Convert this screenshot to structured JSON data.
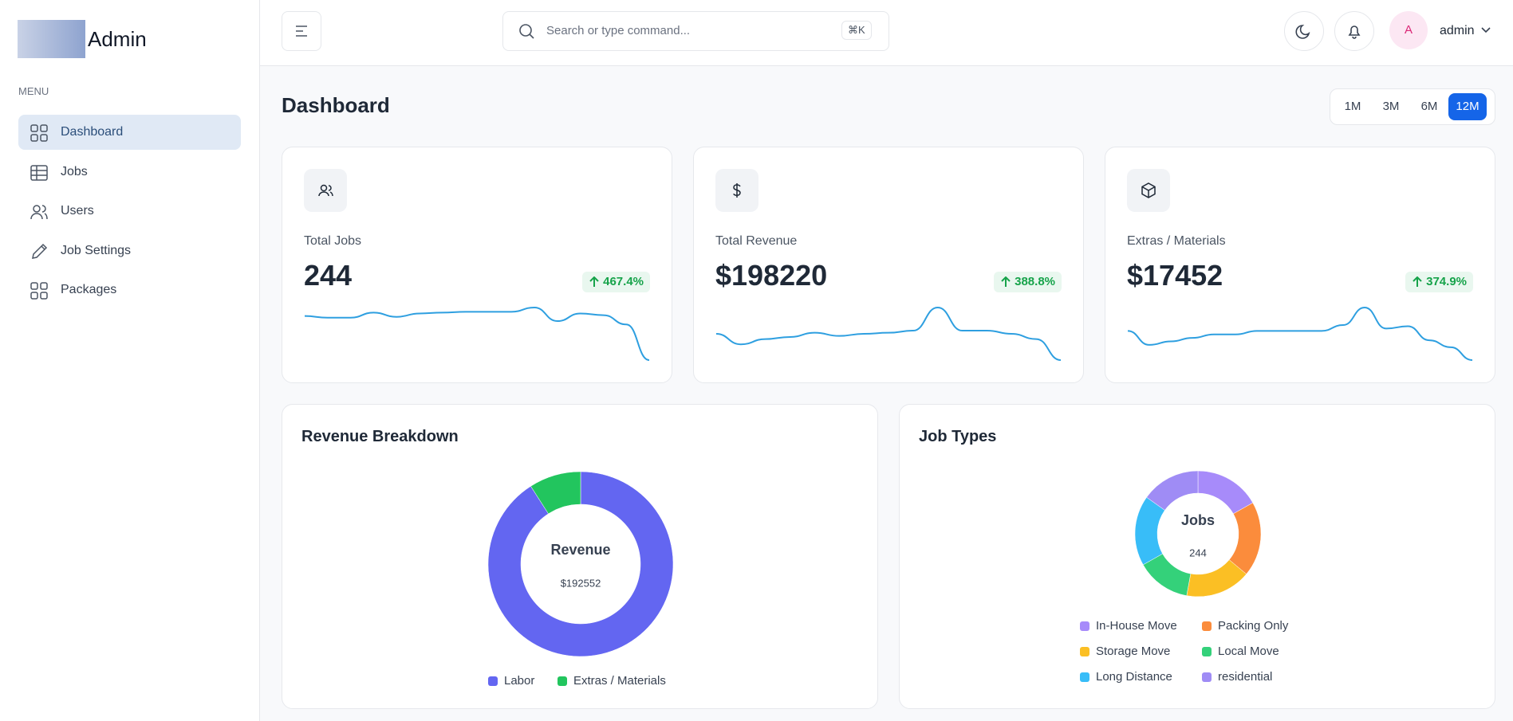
{
  "sidebar": {
    "brand": "Admin",
    "menu_label": "MENU",
    "items": [
      "Dashboard",
      "Jobs",
      "Users",
      "Job Settings",
      "Packages"
    ],
    "active_item": 0
  },
  "header": {
    "search_placeholder": "Search or type command...",
    "shortcut": "⌘K",
    "avatar": "A",
    "user": "admin"
  },
  "page": {
    "title": "Dashboard",
    "ranges": [
      "1M",
      "3M",
      "6M",
      "12M"
    ],
    "active_range": 3
  },
  "stats": [
    {
      "label": "Total Jobs",
      "value": "244",
      "change": "467.4%",
      "sparkline": {
        "color": "#2e9fe0",
        "values": [
          62,
          60,
          60,
          66,
          61,
          65,
          66,
          67,
          67,
          67,
          72,
          56,
          65,
          63,
          52,
          10
        ]
      }
    },
    {
      "label": "Total Revenue",
      "value": "$198220",
      "change": "388.8%",
      "sparkline": {
        "color": "#2e9fe0",
        "values": [
          45,
          35,
          40,
          42,
          46,
          43,
          45,
          46,
          48,
          70,
          48,
          48,
          45,
          40,
          20
        ]
      }
    },
    {
      "label": "Extras / Materials",
      "value": "$17452",
      "change": "374.9%",
      "sparkline": {
        "color": "#2e9fe0",
        "values": [
          50,
          38,
          41,
          44,
          47,
          47,
          50,
          50,
          50,
          50,
          55,
          70,
          52,
          54,
          42,
          36,
          25
        ]
      }
    }
  ],
  "revenue_breakdown": {
    "type": "pie",
    "title": "Revenue Breakdown",
    "center_label": "Revenue",
    "center_value": "$192552",
    "categories": [
      "Labor",
      "Extras / Materials"
    ],
    "values": [
      175100,
      17452
    ],
    "colors": [
      "#6366f1",
      "#22c55e"
    ]
  },
  "job_types": {
    "type": "pie",
    "title": "Job Types",
    "center_label": "Jobs",
    "center_value": "244",
    "categories": [
      "In-House Move",
      "Packing Only",
      "Storage Move",
      "Local Move",
      "Long Distance",
      "residential"
    ],
    "values": [
      41,
      47,
      41,
      34,
      44,
      37
    ],
    "colors": [
      "#a78bfa",
      "#fb8c3c",
      "#fbbf24",
      "#34d17a",
      "#38bdf8",
      "#9f8cf5"
    ]
  }
}
